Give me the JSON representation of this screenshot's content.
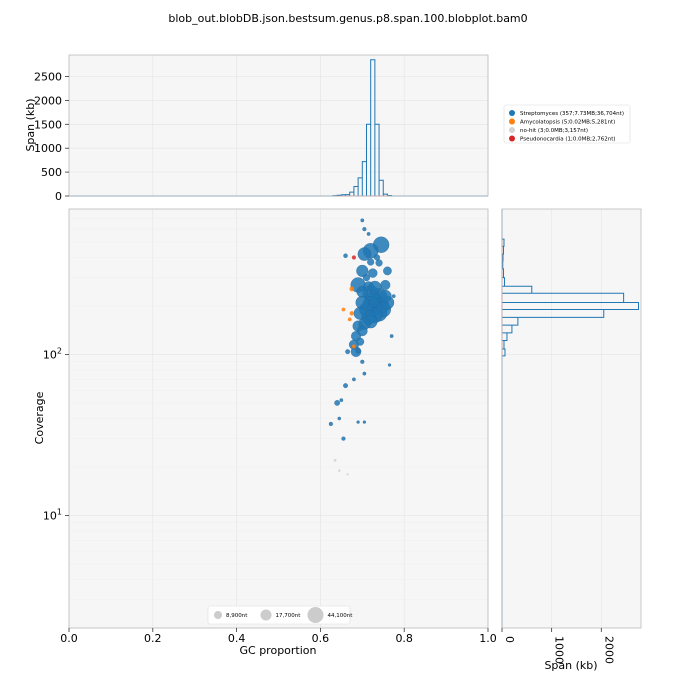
{
  "chart_data": {
    "type": "scatter",
    "title": "blob_out.blobDB.json.bestsum.genus.p8.span.100.blobplot.bam0",
    "colors": {
      "Streptomyces": "#1f77b4",
      "Amycolatopsis": "#ff7f0e",
      "no-hit": "#d3d3d3",
      "Pseudonocardia": "#d62728",
      "plot_bg": "#f6f6f6",
      "grid": "#e4e4e4"
    },
    "main": {
      "xlabel": "GC proportion",
      "ylabel": "Coverage",
      "xlim": [
        0,
        1
      ],
      "ylim_log": [
        2,
        800
      ],
      "y_scale": "log",
      "xticks": [
        {
          "v": 0.0,
          "label": "0.0"
        },
        {
          "v": 0.2,
          "label": "0.2"
        },
        {
          "v": 0.4,
          "label": "0.4"
        },
        {
          "v": 0.6,
          "label": "0.6"
        },
        {
          "v": 0.8,
          "label": "0.8"
        },
        {
          "v": 1.0,
          "label": "1.0"
        }
      ],
      "yticks": [
        {
          "v": 10,
          "base": "10",
          "exp": "1"
        },
        {
          "v": 100,
          "base": "10",
          "exp": "2"
        }
      ],
      "grid": true
    },
    "top_hist": {
      "ylabel": "Span (kb)",
      "ylim": [
        0,
        2950
      ],
      "yticks": [
        {
          "v": 0,
          "label": "0"
        },
        {
          "v": 500,
          "label": "500"
        },
        {
          "v": 1000,
          "label": "1000"
        },
        {
          "v": 1500,
          "label": "1500"
        },
        {
          "v": 2000,
          "label": "2000"
        },
        {
          "v": 2500,
          "label": "2500"
        }
      ],
      "bin_width": 0.01,
      "bins": [
        {
          "x": 0.63,
          "v": 8
        },
        {
          "x": 0.64,
          "v": 15
        },
        {
          "x": 0.65,
          "v": 25
        },
        {
          "x": 0.66,
          "v": 30
        },
        {
          "x": 0.67,
          "v": 80
        },
        {
          "x": 0.68,
          "v": 200
        },
        {
          "x": 0.69,
          "v": 380
        },
        {
          "x": 0.7,
          "v": 720
        },
        {
          "x": 0.71,
          "v": 1500
        },
        {
          "x": 0.72,
          "v": 2850
        },
        {
          "x": 0.73,
          "v": 1500
        },
        {
          "x": 0.74,
          "v": 330
        },
        {
          "x": 0.75,
          "v": 40
        },
        {
          "x": 0.76,
          "v": 10
        }
      ]
    },
    "right_hist": {
      "xlabel": "Span (kb)",
      "xlim": [
        0,
        2800
      ],
      "xticks": [
        {
          "v": 0,
          "label": "0"
        },
        {
          "v": 1000,
          "label": "1000"
        },
        {
          "v": 2000,
          "label": "2000"
        }
      ],
      "bins": [
        {
          "lo": 470,
          "hi": 520,
          "v": 40
        },
        {
          "lo": 420,
          "hi": 470,
          "v": 30
        },
        {
          "lo": 380,
          "hi": 420,
          "v": 20
        },
        {
          "lo": 340,
          "hi": 380,
          "v": 15
        },
        {
          "lo": 300,
          "hi": 340,
          "v": 30
        },
        {
          "lo": 265,
          "hi": 300,
          "v": 50
        },
        {
          "lo": 240,
          "hi": 265,
          "v": 600
        },
        {
          "lo": 210,
          "hi": 240,
          "v": 2450
        },
        {
          "lo": 190,
          "hi": 210,
          "v": 2750
        },
        {
          "lo": 170,
          "hi": 190,
          "v": 2050
        },
        {
          "lo": 152,
          "hi": 170,
          "v": 320
        },
        {
          "lo": 136,
          "hi": 152,
          "v": 200
        },
        {
          "lo": 122,
          "hi": 136,
          "v": 100
        },
        {
          "lo": 108,
          "hi": 122,
          "v": 40
        },
        {
          "lo": 98,
          "hi": 108,
          "v": 60
        }
      ]
    },
    "legend": {
      "placement": "top-right",
      "entries": [
        {
          "key": "Streptomyces",
          "label": "Streptomyces (357;7.73MB;36,704nt)"
        },
        {
          "key": "Amycolatopsis",
          "label": "Amycolatopsis (5;0.02MB;5,281nt)"
        },
        {
          "key": "no-hit",
          "label": "no-hit (3;0.0MB;3,157nt)"
        },
        {
          "key": "Pseudonocardia",
          "label": "Pseudonocardia (1;0.0MB;2,762nt)"
        }
      ]
    },
    "size_legend": [
      {
        "label": "8,900nt",
        "r": 4
      },
      {
        "label": "17,700nt",
        "r": 5.5
      },
      {
        "label": "44,100nt",
        "r": 8
      }
    ],
    "points": [
      {
        "gc": 0.745,
        "cov": 480,
        "s": 44000,
        "g": "Streptomyces"
      },
      {
        "gc": 0.72,
        "cov": 440,
        "s": 40000,
        "g": "Streptomyces"
      },
      {
        "gc": 0.705,
        "cov": 420,
        "s": 30000,
        "g": "Streptomyces"
      },
      {
        "gc": 0.7,
        "cov": 330,
        "s": 24000,
        "g": "Streptomyces"
      },
      {
        "gc": 0.74,
        "cov": 370,
        "s": 8000,
        "g": "Streptomyces"
      },
      {
        "gc": 0.725,
        "cov": 320,
        "s": 14000,
        "g": "Streptomyces"
      },
      {
        "gc": 0.76,
        "cov": 330,
        "s": 12000,
        "g": "Streptomyces"
      },
      {
        "gc": 0.69,
        "cov": 270,
        "s": 38000,
        "g": "Streptomyces"
      },
      {
        "gc": 0.755,
        "cov": 270,
        "s": 16000,
        "g": "Streptomyces"
      },
      {
        "gc": 0.73,
        "cov": 260,
        "s": 30000,
        "g": "Streptomyces"
      },
      {
        "gc": 0.72,
        "cov": 240,
        "s": 44000,
        "g": "Streptomyces"
      },
      {
        "gc": 0.74,
        "cov": 230,
        "s": 44000,
        "g": "Streptomyces"
      },
      {
        "gc": 0.735,
        "cov": 210,
        "s": 44000,
        "g": "Streptomyces"
      },
      {
        "gc": 0.725,
        "cov": 220,
        "s": 44000,
        "g": "Streptomyces"
      },
      {
        "gc": 0.745,
        "cov": 200,
        "s": 44000,
        "g": "Streptomyces"
      },
      {
        "gc": 0.73,
        "cov": 195,
        "s": 44000,
        "g": "Streptomyces"
      },
      {
        "gc": 0.72,
        "cov": 205,
        "s": 44000,
        "g": "Streptomyces"
      },
      {
        "gc": 0.75,
        "cov": 190,
        "s": 40000,
        "g": "Streptomyces"
      },
      {
        "gc": 0.74,
        "cov": 180,
        "s": 44000,
        "g": "Streptomyces"
      },
      {
        "gc": 0.73,
        "cov": 175,
        "s": 40000,
        "g": "Streptomyces"
      },
      {
        "gc": 0.71,
        "cov": 190,
        "s": 36000,
        "g": "Streptomyces"
      },
      {
        "gc": 0.715,
        "cov": 170,
        "s": 36000,
        "g": "Streptomyces"
      },
      {
        "gc": 0.7,
        "cov": 210,
        "s": 30000,
        "g": "Streptomyces"
      },
      {
        "gc": 0.695,
        "cov": 180,
        "s": 28000,
        "g": "Streptomyces"
      },
      {
        "gc": 0.76,
        "cov": 210,
        "s": 30000,
        "g": "Streptomyces"
      },
      {
        "gc": 0.755,
        "cov": 230,
        "s": 26000,
        "g": "Streptomyces"
      },
      {
        "gc": 0.72,
        "cov": 160,
        "s": 30000,
        "g": "Streptomyces"
      },
      {
        "gc": 0.705,
        "cov": 155,
        "s": 24000,
        "g": "Streptomyces"
      },
      {
        "gc": 0.69,
        "cov": 150,
        "s": 20000,
        "g": "Streptomyces"
      },
      {
        "gc": 0.7,
        "cov": 140,
        "s": 18000,
        "g": "Streptomyces"
      },
      {
        "gc": 0.685,
        "cov": 130,
        "s": 16000,
        "g": "Streptomyces"
      },
      {
        "gc": 0.68,
        "cov": 115,
        "s": 16000,
        "g": "Streptomyces"
      },
      {
        "gc": 0.685,
        "cov": 104,
        "s": 18000,
        "g": "Streptomyces"
      },
      {
        "gc": 0.695,
        "cov": 120,
        "s": 10000,
        "g": "Streptomyces"
      },
      {
        "gc": 0.7,
        "cov": 245,
        "s": 22000,
        "g": "Streptomyces"
      },
      {
        "gc": 0.715,
        "cov": 265,
        "s": 16000,
        "g": "Streptomyces"
      },
      {
        "gc": 0.71,
        "cov": 300,
        "s": 8000,
        "g": "Streptomyces"
      },
      {
        "gc": 0.72,
        "cov": 375,
        "s": 8000,
        "g": "Streptomyces"
      },
      {
        "gc": 0.735,
        "cov": 400,
        "s": 6000,
        "g": "Streptomyces"
      },
      {
        "gc": 0.705,
        "cov": 600,
        "s": 2500,
        "g": "Streptomyces"
      },
      {
        "gc": 0.7,
        "cov": 680,
        "s": 2000,
        "g": "Streptomyces"
      },
      {
        "gc": 0.715,
        "cov": 560,
        "s": 2000,
        "g": "Streptomyces"
      },
      {
        "gc": 0.66,
        "cov": 410,
        "s": 3000,
        "g": "Streptomyces"
      },
      {
        "gc": 0.775,
        "cov": 230,
        "s": 2000,
        "g": "Streptomyces"
      },
      {
        "gc": 0.77,
        "cov": 130,
        "s": 2000,
        "g": "Streptomyces"
      },
      {
        "gc": 0.765,
        "cov": 86,
        "s": 1500,
        "g": "Streptomyces"
      },
      {
        "gc": 0.7,
        "cov": 90,
        "s": 2500,
        "g": "Streptomyces"
      },
      {
        "gc": 0.665,
        "cov": 104,
        "s": 3500,
        "g": "Streptomyces"
      },
      {
        "gc": 0.69,
        "cov": 105,
        "s": 4000,
        "g": "Streptomyces"
      },
      {
        "gc": 0.705,
        "cov": 76,
        "s": 2000,
        "g": "Streptomyces"
      },
      {
        "gc": 0.68,
        "cov": 70,
        "s": 2000,
        "g": "Streptomyces"
      },
      {
        "gc": 0.66,
        "cov": 64,
        "s": 3500,
        "g": "Streptomyces"
      },
      {
        "gc": 0.64,
        "cov": 50,
        "s": 5000,
        "g": "Streptomyces"
      },
      {
        "gc": 0.65,
        "cov": 52,
        "s": 2000,
        "g": "Streptomyces"
      },
      {
        "gc": 0.645,
        "cov": 40,
        "s": 1800,
        "g": "Streptomyces"
      },
      {
        "gc": 0.625,
        "cov": 37,
        "s": 2500,
        "g": "Streptomyces"
      },
      {
        "gc": 0.655,
        "cov": 30,
        "s": 2500,
        "g": "Streptomyces"
      },
      {
        "gc": 0.69,
        "cov": 38,
        "s": 1500,
        "g": "Streptomyces"
      },
      {
        "gc": 0.705,
        "cov": 38,
        "s": 1500,
        "g": "Streptomyces"
      },
      {
        "gc": 0.675,
        "cov": 255,
        "s": 4000,
        "g": "Amycolatopsis"
      },
      {
        "gc": 0.655,
        "cov": 190,
        "s": 2500,
        "g": "Amycolatopsis"
      },
      {
        "gc": 0.675,
        "cov": 180,
        "s": 3500,
        "g": "Amycolatopsis"
      },
      {
        "gc": 0.68,
        "cov": 112,
        "s": 3000,
        "g": "Amycolatopsis"
      },
      {
        "gc": 0.67,
        "cov": 165,
        "s": 2500,
        "g": "Amycolatopsis"
      },
      {
        "gc": 0.635,
        "cov": 22,
        "s": 1500,
        "g": "no-hit"
      },
      {
        "gc": 0.645,
        "cov": 19,
        "s": 1200,
        "g": "no-hit"
      },
      {
        "gc": 0.665,
        "cov": 18,
        "s": 1000,
        "g": "no-hit"
      },
      {
        "gc": 0.68,
        "cov": 400,
        "s": 3000,
        "g": "Pseudonocardia"
      }
    ]
  }
}
